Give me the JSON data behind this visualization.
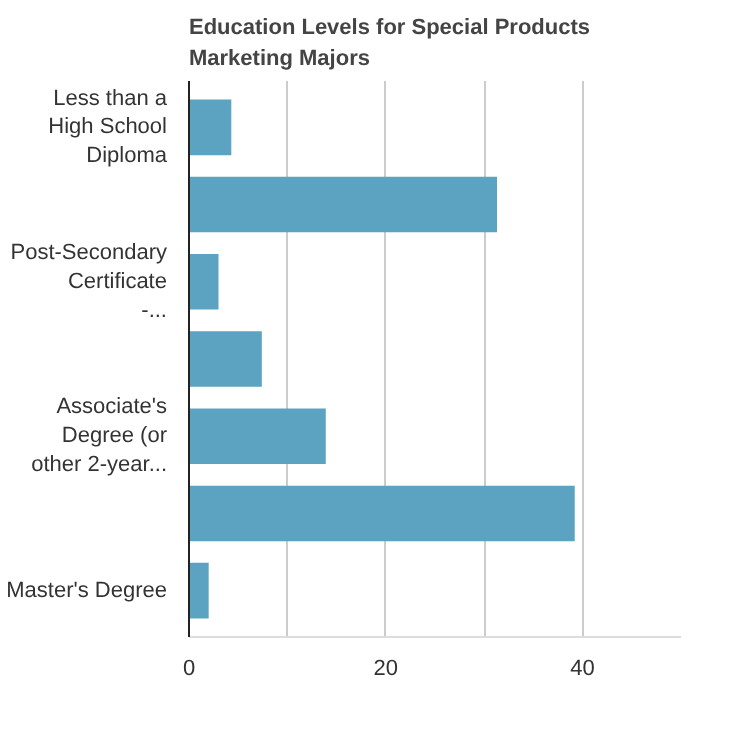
{
  "chart_data": {
    "type": "bar",
    "orientation": "horizontal",
    "title": "Education Levels for Special Products Marketing Majors",
    "categories": [
      "Less than a High School Diploma",
      null,
      "Post-Secondary Certificate -...",
      null,
      "Associate's Degree (or other 2-year...",
      null,
      "Master's Degree"
    ],
    "values": [
      4.3,
      31.3,
      3.0,
      7.4,
      13.9,
      39.2,
      2.0
    ],
    "color": "#5ba3c0",
    "xlim": [
      0,
      50
    ],
    "xticks": [
      0,
      {
        "value": 10,
        "label": null
      },
      20,
      {
        "value": 30,
        "label": null
      },
      40
    ],
    "grid": "x"
  }
}
